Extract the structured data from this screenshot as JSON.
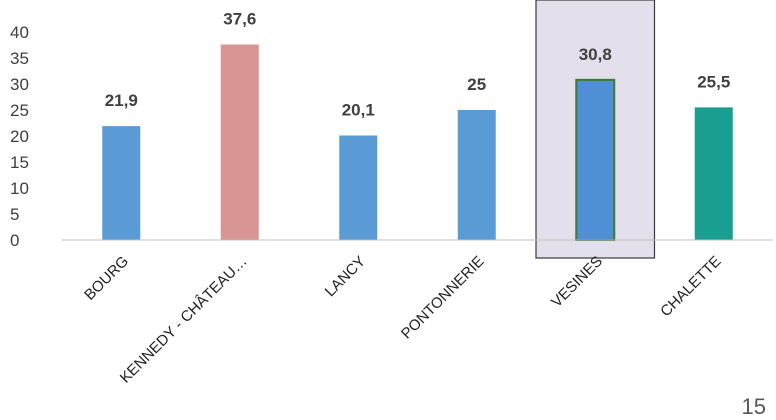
{
  "chart_data": {
    "type": "bar",
    "categories": [
      "BOURG",
      "KENNEDY - CHÂTEAU…",
      "LANCY",
      "PONTONNERIE",
      "VESINES",
      "CHALETTE"
    ],
    "values": [
      21.9,
      37.6,
      20.1,
      25,
      30.8,
      25.5
    ],
    "data_labels": [
      "21,9",
      "37,6",
      "20,1",
      "25",
      "30,8",
      "25,5"
    ],
    "bar_colors": [
      "#5b9bd5",
      "#d99594",
      "#5b9bd5",
      "#5b9bd5",
      "#4f8fd6",
      "#1a9e8f"
    ],
    "highlight_category": "VESINES",
    "highlight_fill": "#e4dfec",
    "yticks": [
      0,
      5,
      10,
      15,
      20,
      25,
      30,
      35,
      40
    ],
    "ylim": [
      0,
      40
    ],
    "grid": false,
    "title": "",
    "xlabel": "",
    "ylabel": ""
  },
  "page_number": "15"
}
